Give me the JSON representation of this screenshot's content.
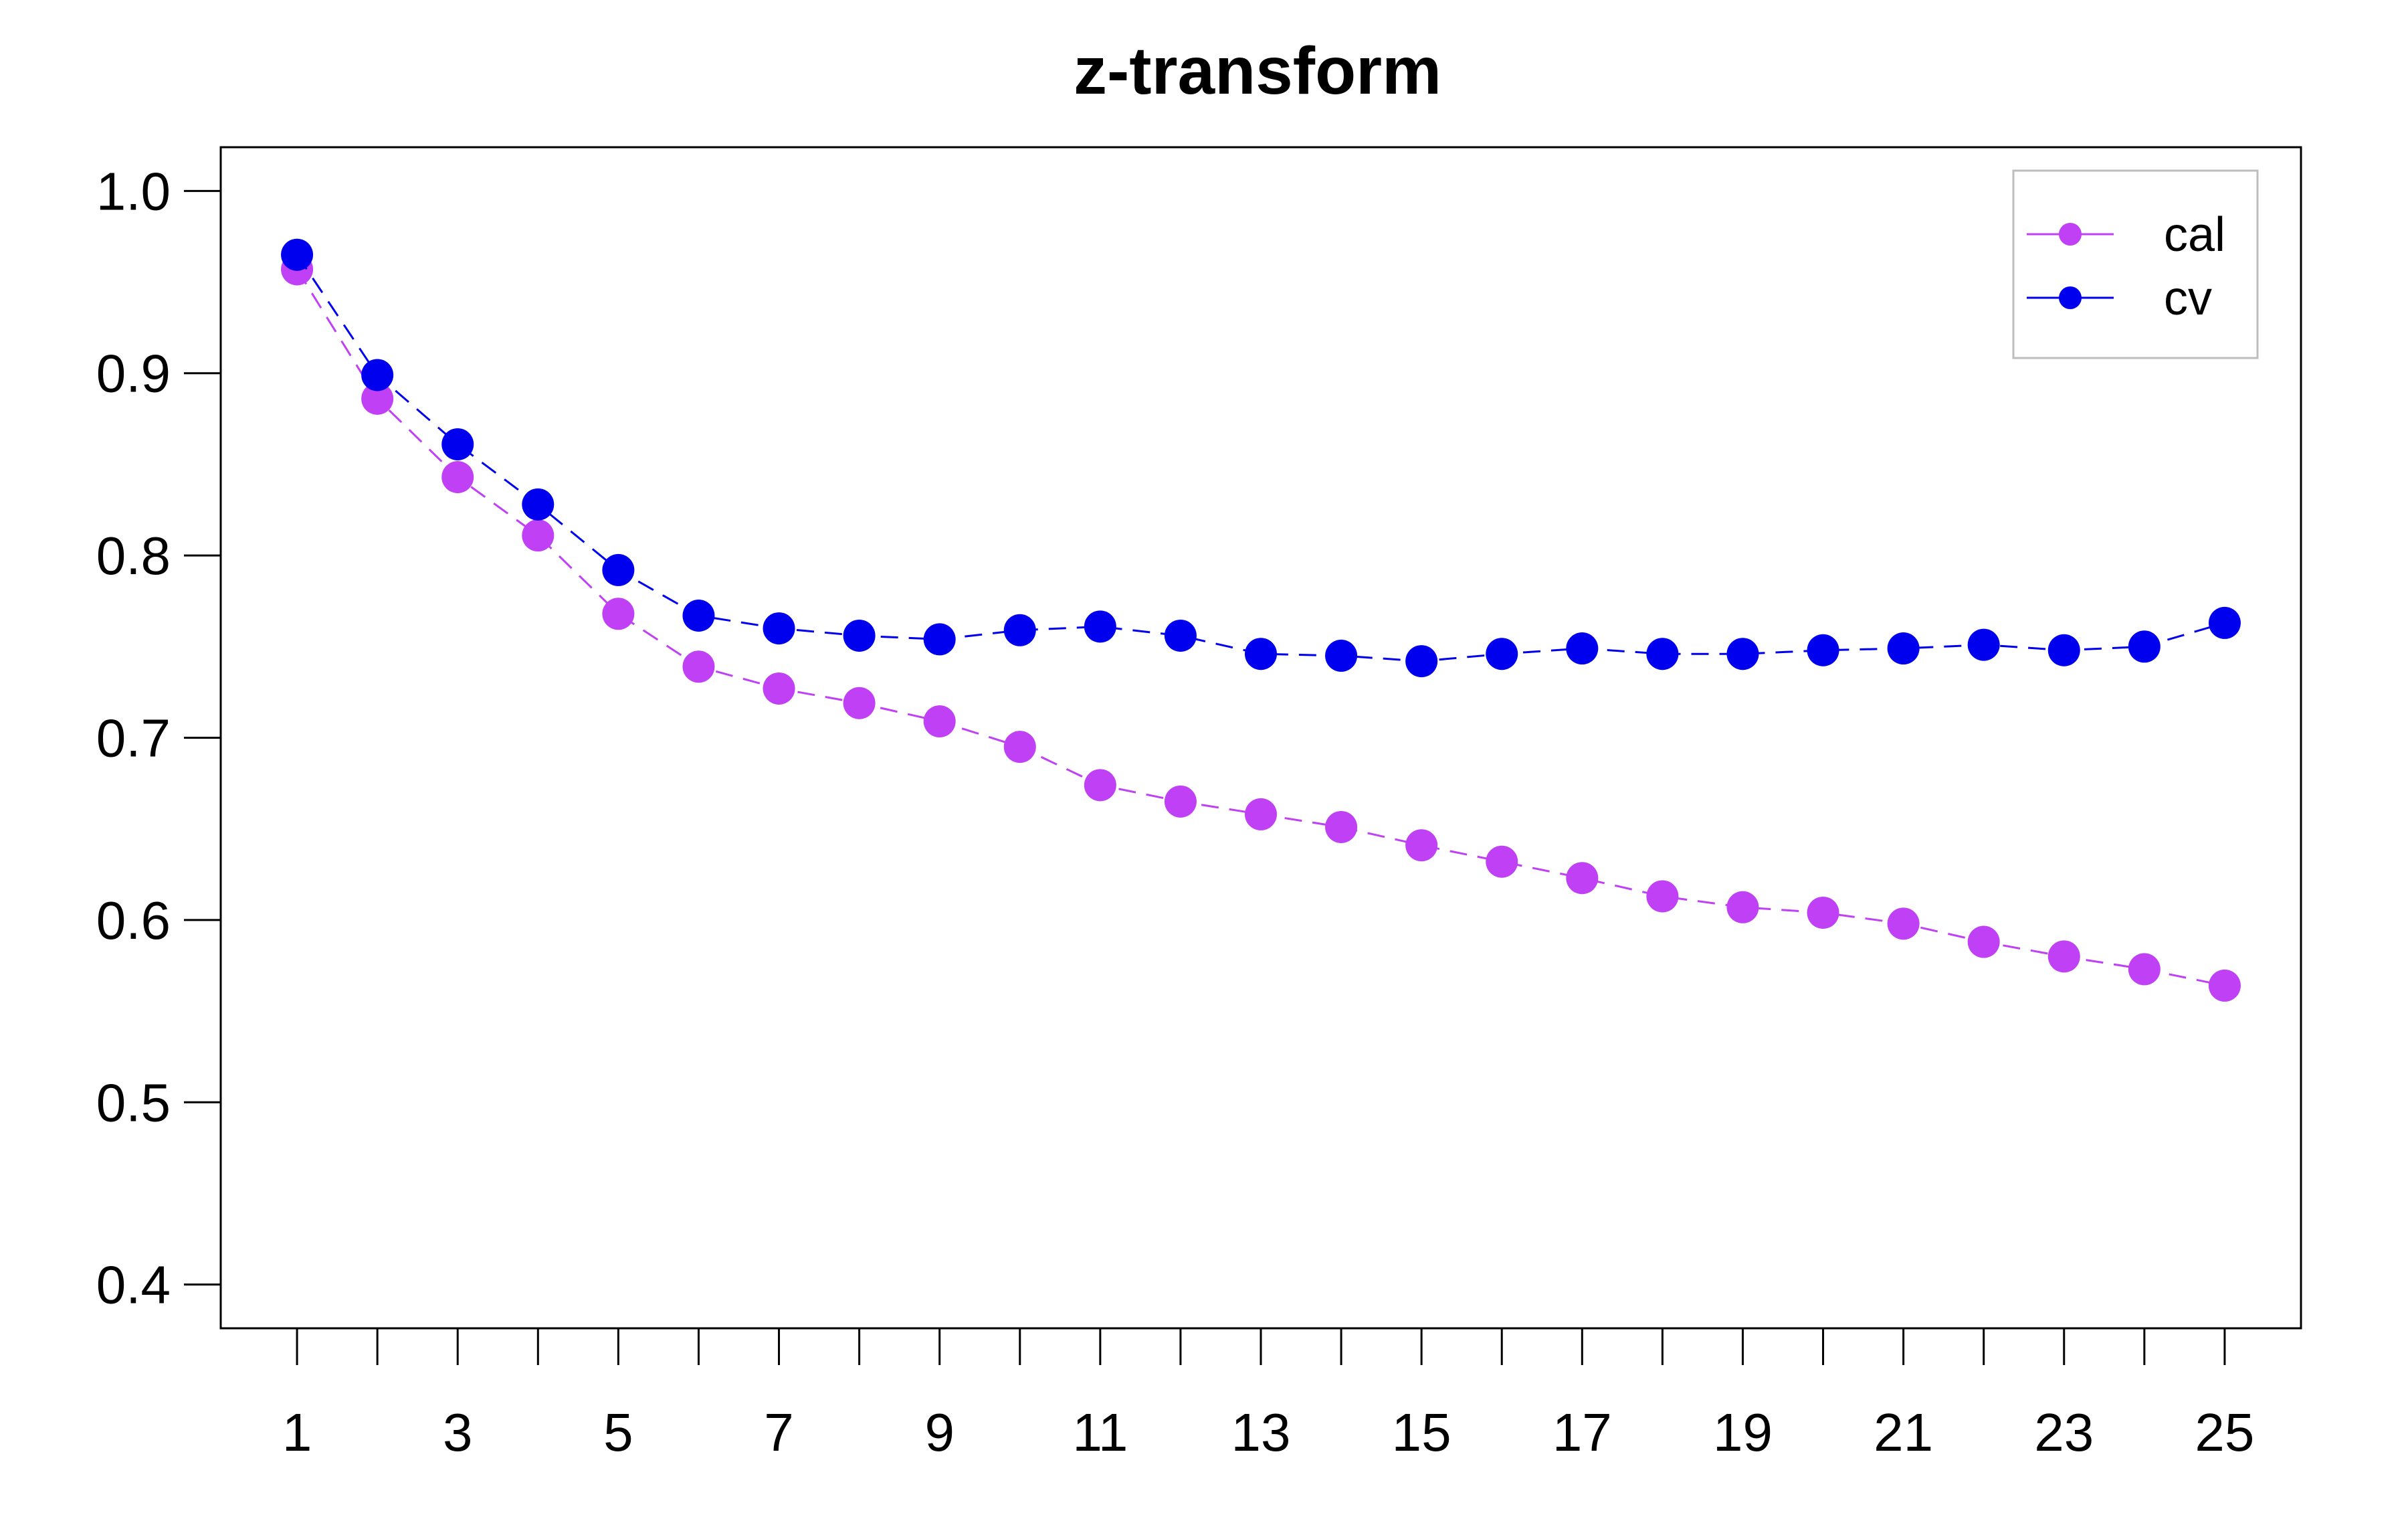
{
  "chart_data": {
    "type": "line",
    "title": "z-transform",
    "xlabel": "",
    "ylabel": "",
    "x": [
      1,
      2,
      3,
      4,
      5,
      6,
      7,
      8,
      9,
      10,
      11,
      12,
      13,
      14,
      15,
      16,
      17,
      18,
      19,
      20,
      21,
      22,
      23,
      24,
      25
    ],
    "x_tick_labels": [
      "1",
      "3",
      "5",
      "7",
      "9",
      "11",
      "13",
      "15",
      "17",
      "19",
      "21",
      "23",
      "25"
    ],
    "y_tick_labels": [
      "0.4",
      "0.5",
      "0.6",
      "0.7",
      "0.8",
      "0.9",
      "1.0"
    ],
    "xlim": [
      0.05,
      25.95
    ],
    "ylim": [
      0.376,
      1.024
    ],
    "grid": false,
    "legend_position": "top-right",
    "series": [
      {
        "name": "cal",
        "color": "#BF40F5",
        "marker": "filled-circle",
        "line_style": "dashed",
        "values": [
          0.957,
          0.886,
          0.843,
          0.811,
          0.768,
          0.739,
          0.727,
          0.719,
          0.709,
          0.695,
          0.674,
          0.665,
          0.658,
          0.651,
          0.641,
          0.632,
          0.623,
          0.613,
          0.607,
          0.604,
          0.598,
          0.588,
          0.58,
          0.573,
          0.564
        ]
      },
      {
        "name": "cv",
        "color": "#0000EE",
        "marker": "filled-circle",
        "line_style": "dashed",
        "values": [
          0.965,
          0.899,
          0.861,
          0.828,
          0.792,
          0.767,
          0.76,
          0.756,
          0.754,
          0.759,
          0.761,
          0.756,
          0.746,
          0.745,
          0.742,
          0.746,
          0.749,
          0.746,
          0.746,
          0.748,
          0.749,
          0.751,
          0.748,
          0.75,
          0.763
        ]
      }
    ]
  }
}
